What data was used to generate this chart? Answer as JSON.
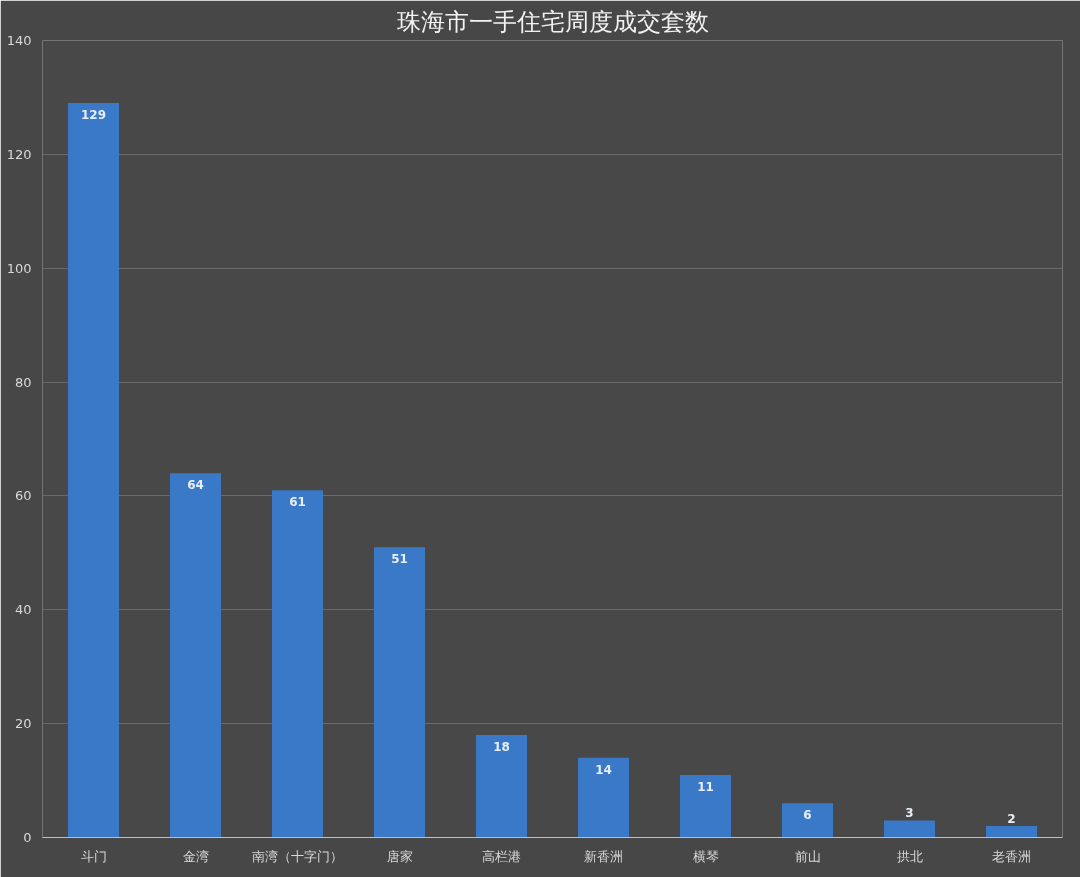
{
  "chart_data": {
    "type": "bar",
    "title": "珠海市一手住宅周度成交套数",
    "categories": [
      "斗门",
      "金湾",
      "南湾（十字门）",
      "唐家",
      "高栏港",
      "新香洲",
      "横琴",
      "前山",
      "拱北",
      "老香洲"
    ],
    "values": [
      129,
      64,
      61,
      51,
      18,
      14,
      11,
      6,
      3,
      2
    ],
    "color": "#3a78c8",
    "ylim": [
      0,
      140
    ],
    "yticks": [
      0,
      20,
      40,
      60,
      80,
      100,
      120,
      140
    ],
    "grid": "y",
    "data_labels": true
  }
}
